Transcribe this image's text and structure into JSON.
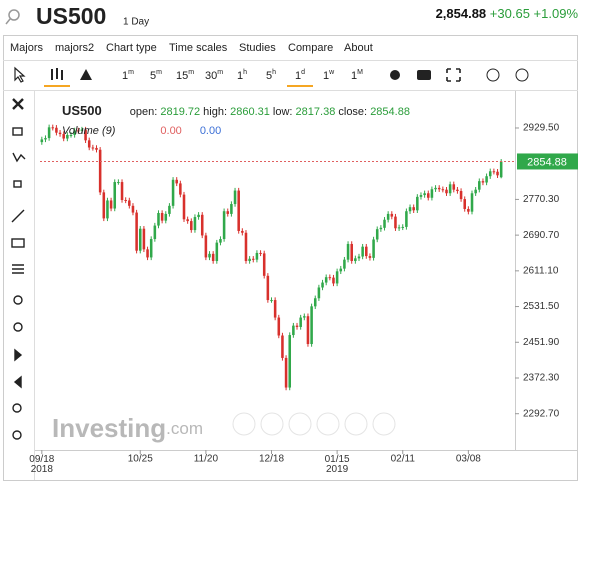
{
  "header": {
    "symbol": "US500",
    "interval": "1 Day",
    "price": "2,854.88",
    "change": "+30.65",
    "change_pct": "+1.09%"
  },
  "menu": [
    "Majors",
    "majors2",
    "Chart type",
    "Time scales",
    "Studies",
    "Compare",
    "About"
  ],
  "intervals": [
    {
      "n": "1",
      "u": "m"
    },
    {
      "n": "5",
      "u": "m"
    },
    {
      "n": "15",
      "u": "m"
    },
    {
      "n": "30",
      "u": "m"
    },
    {
      "n": "1",
      "u": "h"
    },
    {
      "n": "5",
      "u": "h"
    },
    {
      "n": "1",
      "u": "d"
    },
    {
      "n": "1",
      "u": "w"
    },
    {
      "n": "1",
      "u": "M"
    }
  ],
  "watermark": {
    "brand": "Investing",
    "suffix": ".com"
  },
  "chart_data": {
    "type": "candlestick",
    "symbol": "US500",
    "ohlc_labels": [
      "open:",
      "high:",
      "low:",
      "close:"
    ],
    "volume_label": "Volume (9)",
    "volume_values": [
      "0.00",
      "0.00"
    ],
    "categories": [
      "09/18 2018",
      null,
      null,
      null,
      null,
      null,
      null,
      null,
      null,
      null,
      null,
      null,
      null,
      null,
      null,
      null,
      null,
      null,
      null,
      null,
      null,
      null,
      null,
      null,
      null,
      null,
      null,
      "10/25",
      null,
      null,
      null,
      null,
      null,
      null,
      null,
      null,
      null,
      null,
      null,
      null,
      null,
      null,
      null,
      null,
      null,
      "11/20",
      null,
      null,
      null,
      null,
      null,
      null,
      null,
      null,
      null,
      null,
      null,
      null,
      null,
      null,
      null,
      null,
      null,
      "12/18",
      null,
      null,
      null,
      null,
      null,
      null,
      null,
      null,
      null,
      null,
      null,
      null,
      null,
      null,
      null,
      null,
      null,
      "01/15 2019",
      null,
      null,
      null,
      null,
      null,
      null,
      null,
      null,
      null,
      null,
      null,
      null,
      null,
      null,
      null,
      null,
      null,
      "02/11",
      null,
      null,
      null,
      null,
      null,
      null,
      null,
      null,
      null,
      null,
      null,
      null,
      null,
      null,
      null,
      null,
      null,
      "03/08",
      null,
      null,
      null,
      null,
      null,
      null,
      null,
      null,
      null
    ],
    "open": [
      2898,
      2904,
      2907,
      2931,
      2930,
      2919,
      2916,
      2906,
      2914,
      2914,
      2924,
      2923,
      2926,
      2902,
      2886,
      2885,
      2881,
      2786,
      2728,
      2768,
      2750,
      2809,
      2809,
      2769,
      2768,
      2756,
      2741,
      2656,
      2705,
      2659,
      2641,
      2682,
      2712,
      2740,
      2723,
      2738,
      2756,
      2814,
      2806,
      2781,
      2726,
      2722,
      2702,
      2731,
      2736,
      2690,
      2641,
      2649,
      2633,
      2674,
      2682,
      2744,
      2738,
      2760,
      2790,
      2700,
      2696,
      2633,
      2638,
      2636,
      2651,
      2650,
      2600,
      2546,
      2546,
      2507,
      2467,
      2417,
      2351,
      2468,
      2489,
      2486,
      2507,
      2510,
      2448,
      2532,
      2550,
      2574,
      2585,
      2597,
      2596,
      2583,
      2610,
      2616,
      2636,
      2671,
      2633,
      2639,
      2643,
      2665,
      2644,
      2640,
      2681,
      2704,
      2707,
      2725,
      2738,
      2732,
      2706,
      2708,
      2709,
      2744,
      2753,
      2746,
      2776,
      2780,
      2784,
      2774,
      2793,
      2796,
      2793,
      2792,
      2784,
      2804,
      2792,
      2789,
      2771,
      2749,
      2743,
      2784,
      2792,
      2811,
      2808,
      2822,
      2833,
      2832,
      2819.72
    ],
    "high": [
      2910,
      2913,
      2937,
      2937,
      2936,
      2925,
      2922,
      2920,
      2920,
      2930,
      2930,
      2932,
      2932,
      2908,
      2892,
      2891,
      2887,
      2792,
      2774,
      2774,
      2815,
      2815,
      2815,
      2775,
      2774,
      2762,
      2747,
      2711,
      2711,
      2665,
      2688,
      2718,
      2746,
      2746,
      2744,
      2762,
      2820,
      2820,
      2812,
      2787,
      2732,
      2728,
      2737,
      2742,
      2742,
      2696,
      2655,
      2655,
      2680,
      2688,
      2750,
      2750,
      2766,
      2796,
      2796,
      2706,
      2702,
      2644,
      2644,
      2657,
      2657,
      2656,
      2606,
      2552,
      2552,
      2513,
      2473,
      2423,
      2474,
      2495,
      2495,
      2513,
      2516,
      2516,
      2538,
      2556,
      2580,
      2591,
      2603,
      2603,
      2602,
      2616,
      2622,
      2642,
      2677,
      2677,
      2645,
      2649,
      2671,
      2671,
      2650,
      2687,
      2710,
      2713,
      2731,
      2744,
      2744,
      2738,
      2714,
      2715,
      2750,
      2759,
      2759,
      2782,
      2786,
      2790,
      2790,
      2799,
      2802,
      2802,
      2799,
      2798,
      2810,
      2810,
      2798,
      2795,
      2777,
      2755,
      2790,
      2798,
      2817,
      2817,
      2828,
      2839,
      2839,
      2838,
      2860.31
    ],
    "low": [
      2892,
      2898,
      2901,
      2924,
      2913,
      2910,
      2900,
      2900,
      2908,
      2908,
      2917,
      2917,
      2896,
      2880,
      2879,
      2875,
      2780,
      2722,
      2722,
      2744,
      2744,
      2803,
      2763,
      2762,
      2750,
      2735,
      2650,
      2650,
      2653,
      2635,
      2635,
      2676,
      2706,
      2717,
      2717,
      2732,
      2750,
      2800,
      2775,
      2720,
      2716,
      2696,
      2696,
      2725,
      2684,
      2635,
      2635,
      2627,
      2627,
      2668,
      2676,
      2732,
      2732,
      2754,
      2694,
      2690,
      2627,
      2627,
      2630,
      2630,
      2644,
      2594,
      2540,
      2540,
      2501,
      2461,
      2411,
      2345,
      2345,
      2462,
      2480,
      2480,
      2501,
      2442,
      2442,
      2526,
      2544,
      2568,
      2579,
      2590,
      2577,
      2577,
      2604,
      2610,
      2630,
      2627,
      2627,
      2633,
      2637,
      2638,
      2634,
      2634,
      2675,
      2698,
      2701,
      2719,
      2726,
      2700,
      2700,
      2702,
      2703,
      2738,
      2740,
      2740,
      2770,
      2774,
      2768,
      2768,
      2787,
      2787,
      2786,
      2778,
      2778,
      2786,
      2783,
      2765,
      2743,
      2737,
      2737,
      2778,
      2786,
      2802,
      2802,
      2816,
      2826,
      2818,
      2817.38
    ],
    "close": [
      2904,
      2907,
      2931,
      2930,
      2919,
      2916,
      2906,
      2914,
      2914,
      2924,
      2923,
      2926,
      2902,
      2886,
      2885,
      2881,
      2786,
      2728,
      2768,
      2750,
      2809,
      2809,
      2769,
      2768,
      2756,
      2741,
      2656,
      2705,
      2659,
      2641,
      2682,
      2712,
      2740,
      2723,
      2738,
      2756,
      2814,
      2806,
      2781,
      2726,
      2722,
      2702,
      2731,
      2736,
      2690,
      2641,
      2649,
      2633,
      2674,
      2682,
      2744,
      2738,
      2760,
      2790,
      2700,
      2696,
      2633,
      2638,
      2636,
      2651,
      2650,
      2600,
      2546,
      2546,
      2507,
      2467,
      2417,
      2351,
      2468,
      2489,
      2486,
      2507,
      2510,
      2448,
      2532,
      2550,
      2574,
      2585,
      2597,
      2596,
      2583,
      2610,
      2616,
      2636,
      2671,
      2633,
      2639,
      2643,
      2665,
      2644,
      2640,
      2681,
      2704,
      2707,
      2725,
      2738,
      2732,
      2706,
      2708,
      2709,
      2744,
      2753,
      2746,
      2776,
      2780,
      2784,
      2774,
      2793,
      2796,
      2793,
      2792,
      2784,
      2804,
      2792,
      2789,
      2771,
      2749,
      2743,
      2784,
      2792,
      2811,
      2808,
      2822,
      2833,
      2832,
      2824,
      2854.88
    ],
    "up_color": "#30a84a",
    "down_color": "#d8302c",
    "ylim": [
      2211.8,
      3009.7
    ],
    "yticks": [
      {
        "value": 2292.7,
        "label": "2292.70"
      },
      {
        "value": 2372.3,
        "label": "2372.30"
      },
      {
        "value": 2451.9,
        "label": "2451.90"
      },
      {
        "value": 2531.5,
        "label": "2531.50"
      },
      {
        "value": 2611.1,
        "label": "2611.10"
      },
      {
        "value": 2690.7,
        "label": "2690.70"
      },
      {
        "value": 2770.3,
        "label": "2770.30"
      },
      {
        "value": 2929.5,
        "label": "2929.50"
      }
    ]
  }
}
